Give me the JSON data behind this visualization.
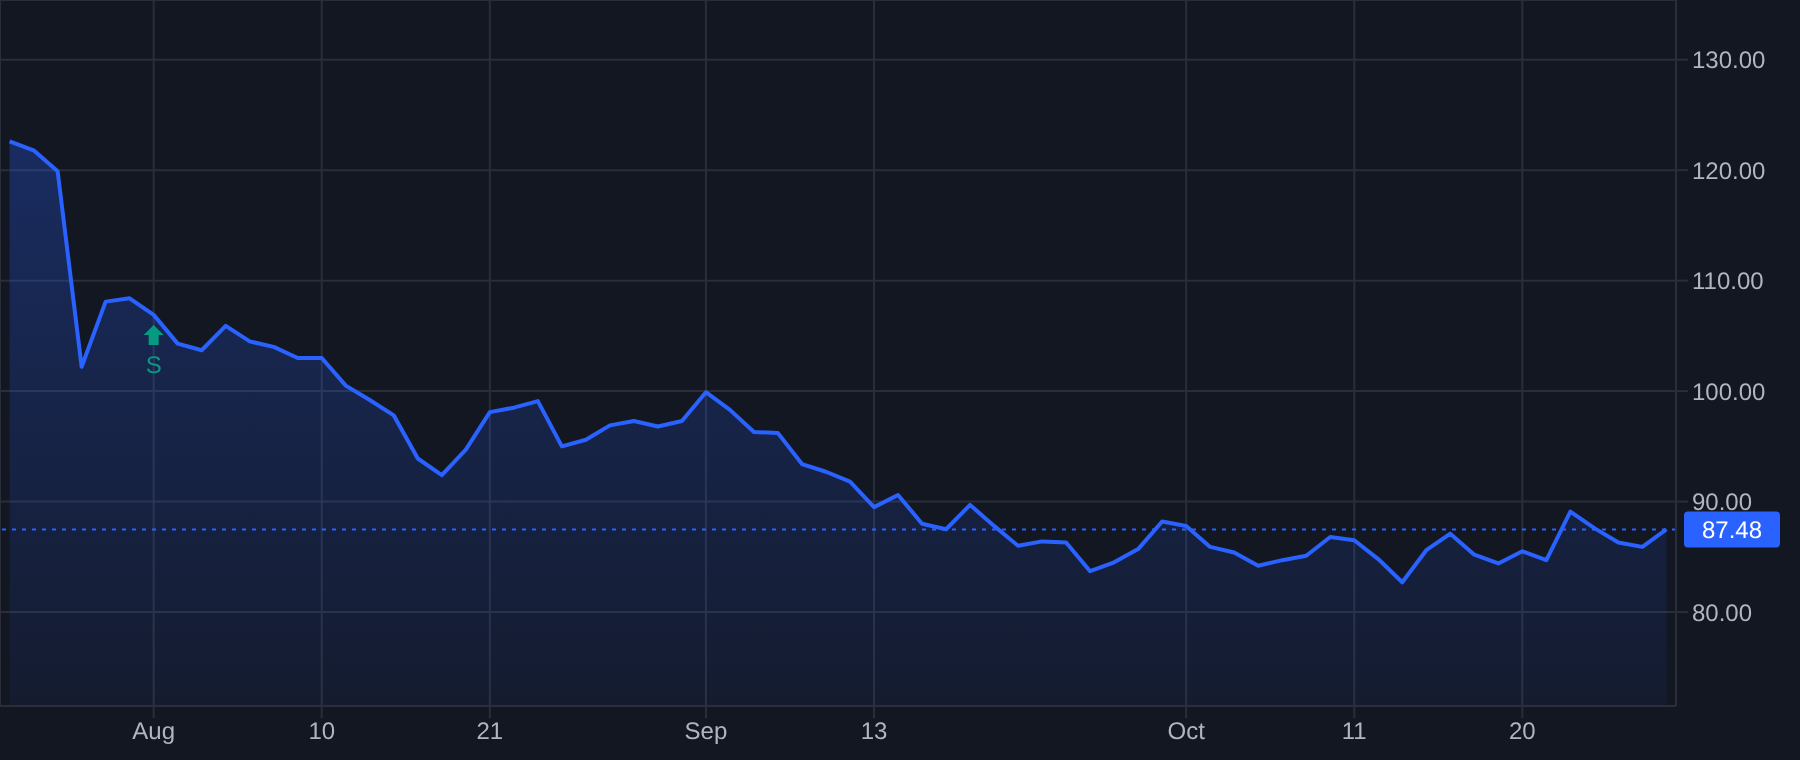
{
  "chart_data": {
    "type": "area",
    "categories": [
      null,
      null,
      null,
      null,
      null,
      null,
      "Aug",
      null,
      null,
      null,
      null,
      null,
      null,
      "10",
      null,
      null,
      null,
      null,
      null,
      null,
      "21",
      null,
      null,
      null,
      null,
      null,
      null,
      null,
      null,
      "Sep",
      null,
      null,
      null,
      null,
      null,
      null,
      "13",
      null,
      null,
      null,
      null,
      null,
      null,
      null,
      null,
      null,
      null,
      null,
      null,
      "Oct",
      null,
      null,
      null,
      null,
      null,
      null,
      "11",
      null,
      null,
      null,
      null,
      null,
      null,
      "20",
      null,
      null,
      null,
      null,
      null,
      null
    ],
    "series": [
      {
        "color": "#2962ff",
        "values": [
          122.6,
          121.8,
          119.9,
          102.2,
          108.1,
          108.4,
          106.9,
          104.3,
          103.7,
          105.9,
          104.5,
          104.0,
          103.0,
          103.0,
          100.5,
          99.2,
          97.8,
          93.9,
          92.4,
          94.7,
          98.1,
          98.5,
          99.1,
          95.0,
          95.6,
          96.9,
          97.3,
          96.8,
          97.3,
          99.9,
          98.3,
          96.3,
          96.2,
          93.4,
          92.7,
          91.8,
          89.5,
          90.6,
          88.0,
          87.5,
          89.7,
          87.8,
          86.0,
          86.4,
          86.3,
          83.7,
          84.5,
          85.7,
          88.2,
          87.8,
          85.9,
          85.4,
          84.2,
          84.7,
          85.1,
          86.8,
          86.5,
          84.8,
          82.7,
          85.6,
          87.1,
          85.2,
          84.4,
          85.5,
          84.7,
          89.1,
          87.6,
          86.3,
          85.9,
          87.48
        ]
      }
    ],
    "ylim": [
      71.5,
      135.4
    ],
    "yticks": [
      {
        "value": 80,
        "label": "80.00"
      },
      {
        "value": 90,
        "label": "90.00"
      },
      {
        "value": 100,
        "label": "100.00"
      },
      {
        "value": 110,
        "label": "110.00"
      },
      {
        "value": 120,
        "label": "120.00"
      },
      {
        "value": 130,
        "label": "130.00"
      }
    ],
    "grid": true,
    "ref_lines": [
      {
        "axis": "y",
        "value": 87.48,
        "label": "87.48",
        "color": "#2962ff",
        "line_style": "dotted"
      }
    ],
    "annotations": [
      {
        "text": "S",
        "x": "Aug",
        "y": 106.9
      }
    ]
  }
}
